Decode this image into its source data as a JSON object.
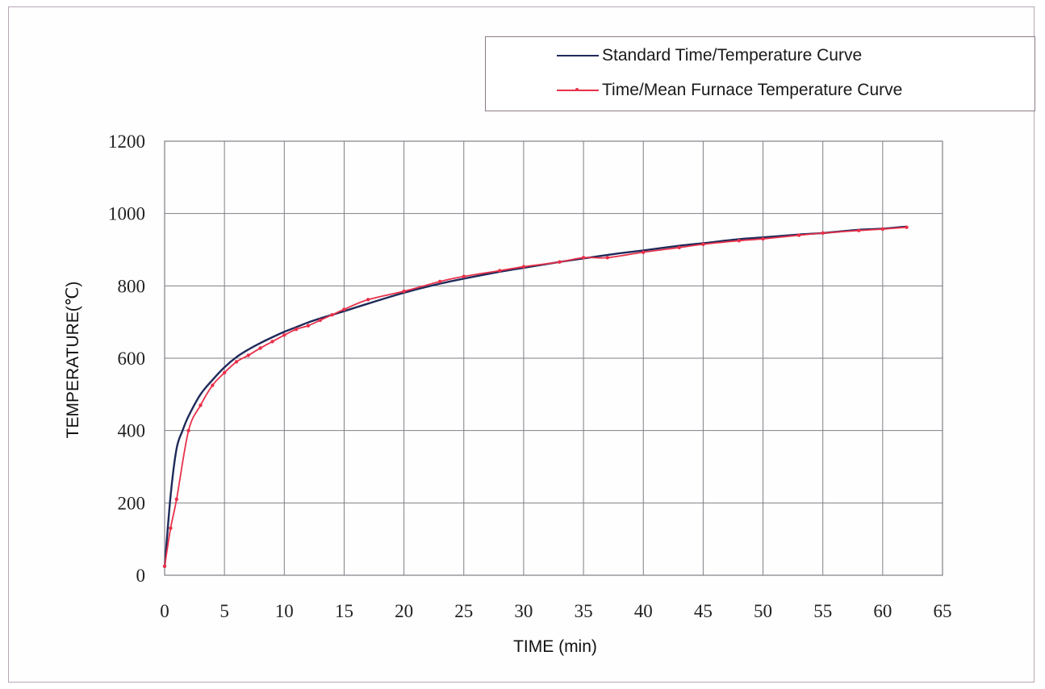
{
  "legend": {
    "series_1": "Standard Time/Temperature Curve",
    "series_2": "Time/Mean Furnace Temperature Curve"
  },
  "colors": {
    "standard": "#1f2a5a",
    "furnace": "#e8304a",
    "grid": "#7f7f86"
  },
  "chart_data": {
    "type": "line",
    "xlabel": "TIME (min)",
    "ylabel": "TEMPERATURE(℃)",
    "xlim": [
      0,
      65
    ],
    "ylim": [
      0,
      1200
    ],
    "xticks": [
      0,
      5,
      10,
      15,
      20,
      25,
      30,
      35,
      40,
      45,
      50,
      55,
      60,
      65
    ],
    "yticks": [
      0,
      200,
      400,
      600,
      800,
      1000,
      1200
    ],
    "grid": true,
    "legend_position": "top-right",
    "series": [
      {
        "name": "Standard Time/Temperature Curve",
        "x": [
          0,
          0.5,
          1,
          1.5,
          2,
          3,
          4,
          5,
          6,
          7,
          8,
          9,
          10,
          11,
          12,
          13,
          14,
          15,
          17,
          20,
          23,
          25,
          28,
          30,
          33,
          35,
          38,
          40,
          43,
          45,
          48,
          50,
          53,
          55,
          58,
          60,
          62
        ],
        "y": [
          20,
          220,
          350,
          400,
          440,
          500,
          540,
          575,
          603,
          624,
          642,
          658,
          673,
          686,
          699,
          710,
          720,
          730,
          751,
          781,
          806,
          820,
          839,
          850,
          866,
          876,
          890,
          898,
          911,
          918,
          929,
          934,
          942,
          946,
          955,
          958,
          964
        ]
      },
      {
        "name": "Time/Mean Furnace Temperature Curve",
        "x": [
          0,
          0.5,
          1,
          2,
          3,
          4,
          5,
          6,
          7,
          8,
          9,
          10,
          11,
          12,
          13,
          14,
          15,
          17,
          20,
          23,
          25,
          28,
          30,
          33,
          35,
          37,
          40,
          43,
          45,
          48,
          50,
          53,
          55,
          58,
          60,
          62
        ],
        "y": [
          25,
          130,
          210,
          400,
          470,
          525,
          560,
          590,
          608,
          628,
          646,
          664,
          680,
          690,
          705,
          720,
          735,
          762,
          785,
          812,
          826,
          842,
          853,
          866,
          878,
          878,
          893,
          906,
          915,
          925,
          930,
          940,
          946,
          953,
          957,
          962
        ]
      }
    ]
  }
}
